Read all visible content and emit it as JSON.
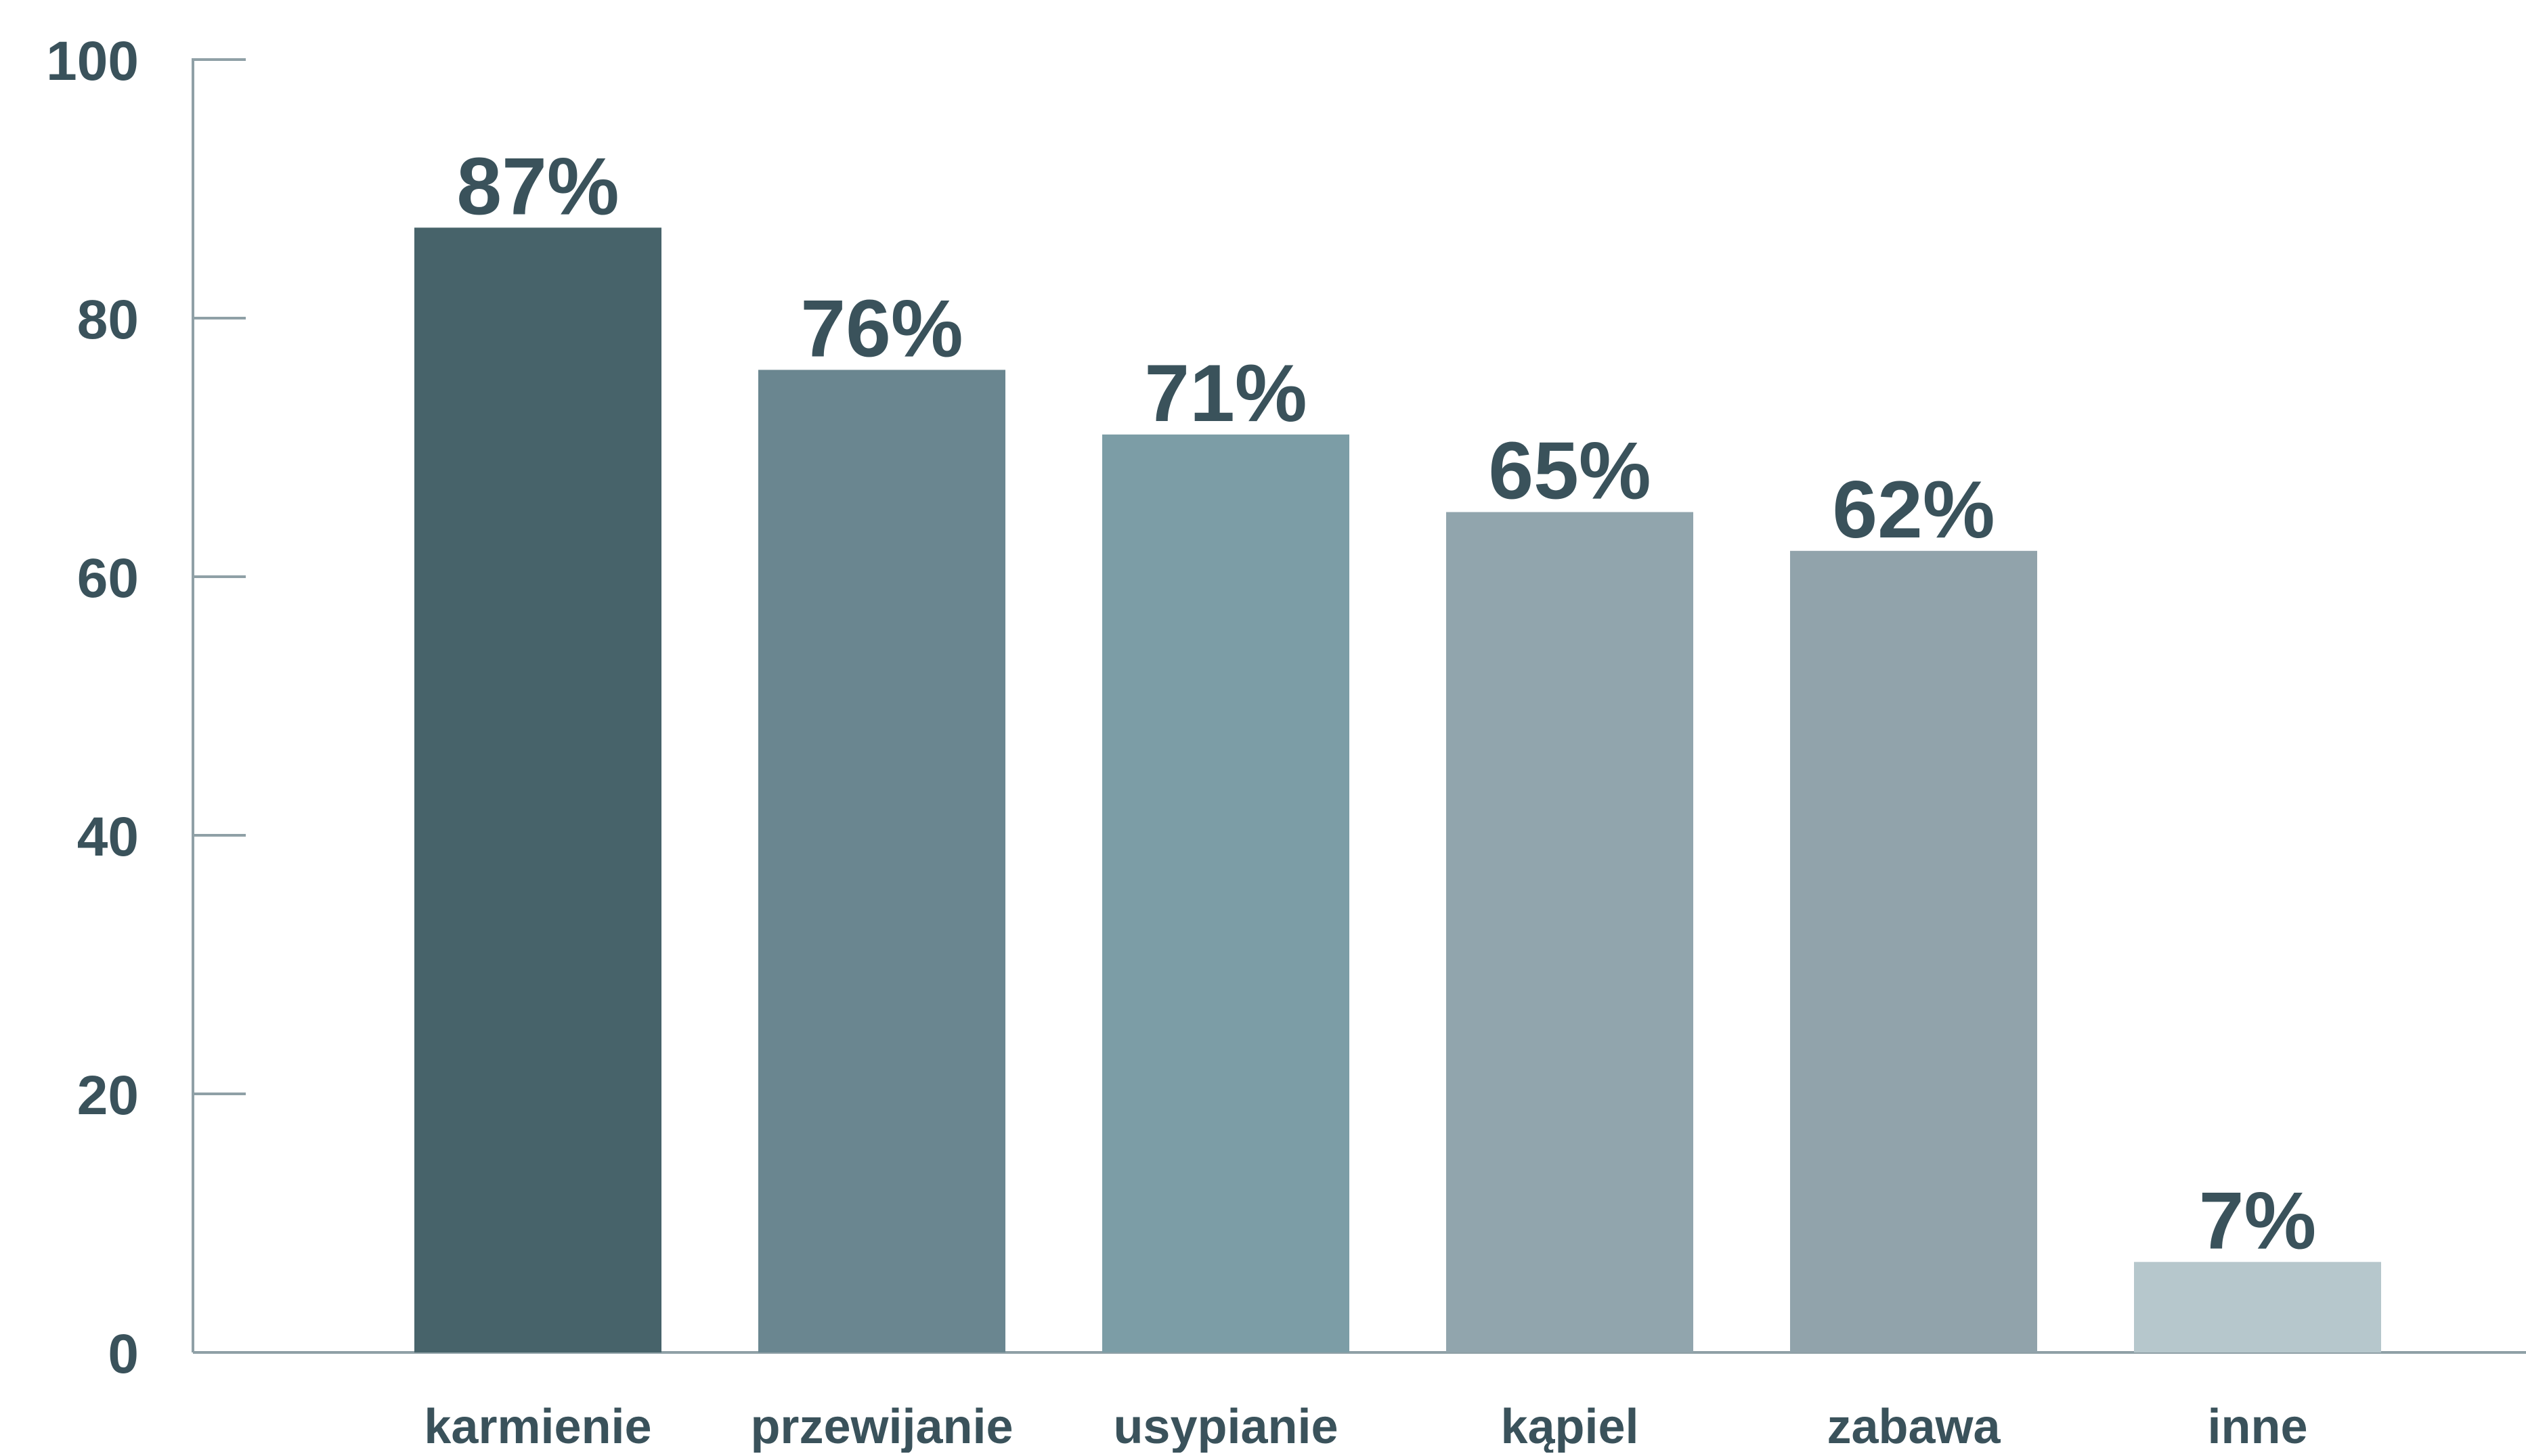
{
  "chart_data": {
    "type": "bar",
    "categories": [
      "karmienie",
      "przewijanie",
      "usypianie",
      "kąpiel",
      "zabawa",
      "inne"
    ],
    "values": [
      87,
      76,
      71,
      65,
      62,
      7
    ],
    "value_labels": [
      "87%",
      "76%",
      "71%",
      "65%",
      "62%",
      "7%"
    ],
    "bar_colors": [
      "#47636a",
      "#6a8690",
      "#7c9da6",
      "#91a5ad",
      "#91a3ab",
      "#b6c7cc"
    ],
    "yticks": [
      0,
      20,
      40,
      60,
      80,
      100
    ],
    "ylim": [
      0,
      100
    ],
    "title": "",
    "xlabel": "",
    "ylabel": "",
    "grid": false,
    "legend": "none",
    "text_color": "#3a525b",
    "axis_color": "#8fa0a6"
  }
}
